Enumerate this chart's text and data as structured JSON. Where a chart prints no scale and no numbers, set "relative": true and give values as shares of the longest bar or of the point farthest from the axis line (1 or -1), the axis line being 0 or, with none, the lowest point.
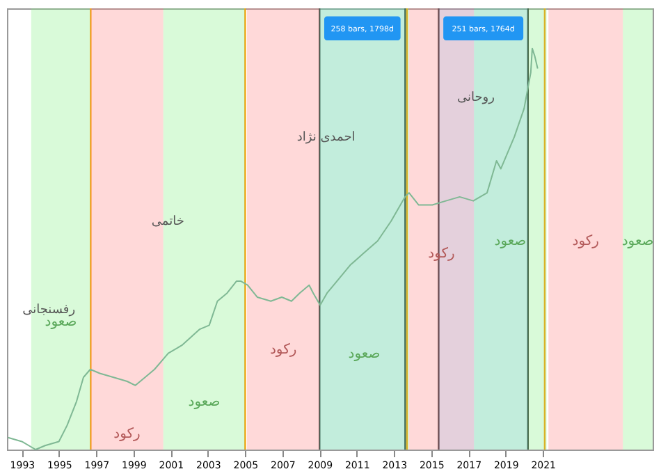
{
  "chart_data": {
    "type": "line",
    "relative": true,
    "xlim": [
      1992.2,
      2026.9
    ],
    "xticks": [
      1993,
      1995,
      1997,
      1999,
      2001,
      2003,
      2005,
      2007,
      2009,
      2011,
      2013,
      2015,
      2017,
      2019,
      2021
    ],
    "tick_labels": "x",
    "grid": false,
    "series": [
      {
        "color": "#7fb894",
        "x": [
          1992.26,
          1993.0,
          1993.74,
          1994.25,
          1994.99,
          1995.43,
          1995.94,
          1996.31,
          1996.68,
          1997.19,
          1997.93,
          1998.66,
          1999.1,
          1999.62,
          2000.13,
          2000.87,
          2001.6,
          2002.56,
          2003.07,
          2003.51,
          2004.03,
          2004.54,
          2004.76,
          2005.13,
          2005.65,
          2006.38,
          2006.97,
          2007.49,
          2007.93,
          2008.44,
          2008.66,
          2009.03,
          2009.4,
          2009.76,
          2010.65,
          2011.38,
          2012.12,
          2012.85,
          2013.59,
          2013.81,
          2014.32,
          2015.06,
          2015.79,
          2016.53,
          2017.26,
          2018.0,
          2018.51,
          2018.74,
          2019.47,
          2019.99,
          2020.35,
          2020.43,
          2020.57,
          2020.72
        ],
        "values": [
          0.03,
          0.02,
          0,
          0.01,
          0.02,
          0.06,
          0.12,
          0.18,
          0.2,
          0.19,
          0.18,
          0.17,
          0.16,
          0.18,
          0.2,
          0.24,
          0.26,
          0.3,
          0.31,
          0.37,
          0.39,
          0.42,
          0.42,
          0.41,
          0.38,
          0.37,
          0.38,
          0.37,
          0.39,
          0.41,
          0.39,
          0.36,
          0.39,
          0.41,
          0.46,
          0.49,
          0.52,
          0.57,
          0.63,
          0.64,
          0.61,
          0.61,
          0.62,
          0.63,
          0.62,
          0.64,
          0.72,
          0.7,
          0.78,
          0.85,
          0.94,
          1,
          0.98,
          0.95
        ]
      }
    ],
    "ref_lines": [
      {
        "axis": "x",
        "value": 1996.7,
        "color": "#ff9800"
      },
      {
        "axis": "x",
        "value": 2005.0,
        "color": "#ff9800"
      },
      {
        "axis": "x",
        "value": 2013.7,
        "color": "#ff9800"
      },
      {
        "axis": "x",
        "value": 2021.1,
        "color": "#ff9800"
      },
      {
        "axis": "x",
        "value": 2009.0,
        "color": "#333333"
      },
      {
        "axis": "x",
        "value": 2013.6,
        "color": "#333333"
      },
      {
        "axis": "x",
        "value": 2015.4,
        "color": "#333333"
      },
      {
        "axis": "x",
        "value": 2020.2,
        "color": "#333333"
      }
    ],
    "annotations": [
      "رفسنجانی",
      "خاتمی",
      "احمدی نژاد",
      "روحانی"
    ],
    "bands": [
      {
        "axis": "x",
        "from": 1993.5,
        "to": 1996.7,
        "color": "#80f080",
        "label": "صعود"
      },
      {
        "axis": "x",
        "from": 1996.7,
        "to": 2000.6,
        "color": "#ff8080",
        "label": "رکود"
      },
      {
        "axis": "x",
        "from": 2000.6,
        "to": 2005.0,
        "color": "#80f080",
        "label": "صعود"
      },
      {
        "axis": "x",
        "from": 2005.1,
        "to": 2009.0,
        "color": "#ff8080",
        "label": "رکود"
      },
      {
        "axis": "x",
        "from": 2009.0,
        "to": 2013.8,
        "color": "#80f080",
        "label": "صعود"
      },
      {
        "axis": "x",
        "from": 2013.8,
        "to": 2017.3,
        "color": "#ff8080",
        "label": "رکود"
      },
      {
        "axis": "x",
        "from": 2017.3,
        "to": 2021.2,
        "color": "#80f080",
        "label": "صعود"
      },
      {
        "axis": "x",
        "from": 2021.3,
        "to": 2025.3,
        "color": "#ff8080",
        "label": "رکود"
      },
      {
        "axis": "x",
        "from": 2025.3,
        "to": 2026.9,
        "color": "#80f080",
        "label": "صعود"
      },
      {
        "axis": "x",
        "from": 2009.0,
        "to": 2013.6,
        "color": "#2196f3",
        "label": "258 bars, 1798d"
      },
      {
        "axis": "x",
        "from": 2015.4,
        "to": 2020.2,
        "color": "#2196f3",
        "label": "251 bars, 1764d"
      }
    ]
  }
}
